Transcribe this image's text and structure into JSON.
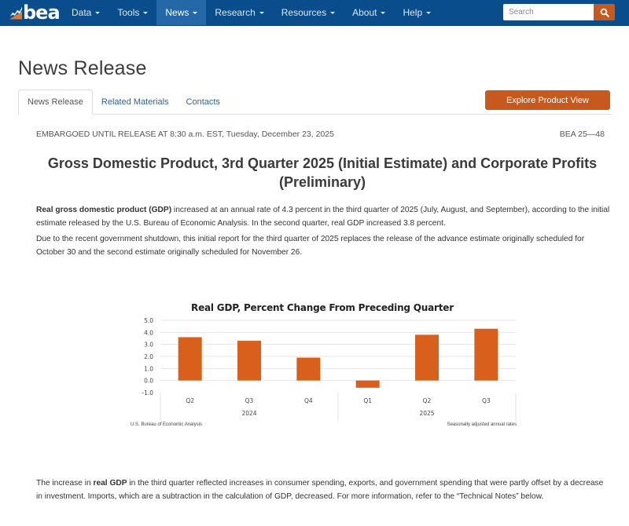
{
  "nav": {
    "logo_text": "bea",
    "items": [
      {
        "label": "Data",
        "active": false
      },
      {
        "label": "Tools",
        "active": false
      },
      {
        "label": "News",
        "active": true
      },
      {
        "label": "Research",
        "active": false
      },
      {
        "label": "Resources",
        "active": false
      },
      {
        "label": "About",
        "active": false
      },
      {
        "label": "Help",
        "active": false
      }
    ],
    "search": {
      "placeholder": "Search",
      "value": "",
      "icon": "search-icon"
    }
  },
  "header": {
    "title": "News Release",
    "tabs": [
      {
        "label": "News Release",
        "active": true
      },
      {
        "label": "Related Materials",
        "active": false
      },
      {
        "label": "Contacts",
        "active": false
      }
    ],
    "explore_button": "Explore Product View"
  },
  "release": {
    "embargo": "EMBARGOED UNTIL RELEASE AT 8:30 a.m. EST, Tuesday, December 23, 2025",
    "number": "BEA 25—48",
    "headline": "Gross Domestic Product, 3rd Quarter 2025 (Initial Estimate) and Corporate Profits (Preliminary)",
    "p1_bold": "Real gross domestic product (GDP)",
    "p1_rest": " increased at an annual rate of 4.3 percent in the third quarter of 2025 (July, August, and September), according to the initial estimate released by the U.S. Bureau of Economic Analysis. In the second quarter, real GDP increased 3.8 percent.",
    "p2": "Due to the recent government shutdown, this initial report for the third quarter of 2025 replaces the release of the advance estimate originally scheduled for October 30 and the second estimate originally scheduled for November 26.",
    "p3_start": "The increase in ",
    "p3_bold": "real GDP",
    "p3_rest": " in the third quarter reflected increases in consumer spending, exports, and government spending that were partly offset by a decrease in investment. Imports, which are a subtraction in the calculation of GDP, decreased. For more information, refer to the “Technical Notes” below."
  },
  "chart_data": {
    "type": "bar",
    "title": "Real GDP, Percent Change From Preceding Quarter",
    "categories": [
      "Q2",
      "Q3",
      "Q4",
      "Q1",
      "Q2",
      "Q3"
    ],
    "groups": [
      {
        "label": "2024",
        "categories": [
          "Q2",
          "Q3",
          "Q4"
        ]
      },
      {
        "label": "2025",
        "categories": [
          "Q1",
          "Q2",
          "Q3"
        ]
      }
    ],
    "values": [
      3.6,
      3.3,
      1.9,
      -0.6,
      3.8,
      4.3
    ],
    "yticks": [
      "5.0",
      "4.0",
      "3.0",
      "2.0",
      "1.0",
      "0.0",
      "-1.0"
    ],
    "ylim": [
      -1.0,
      5.0
    ],
    "xlabel": "",
    "ylabel": "",
    "grid": true,
    "bar_color": "#d9601c",
    "source": "U.S. Bureau of Economic Analysis",
    "note": "Seasonally adjusted annual rates"
  },
  "colors": {
    "nav_bg": "#0a4d8c",
    "nav_active": "#2468a8",
    "accent": "#c7581e",
    "link": "#2a6496"
  }
}
